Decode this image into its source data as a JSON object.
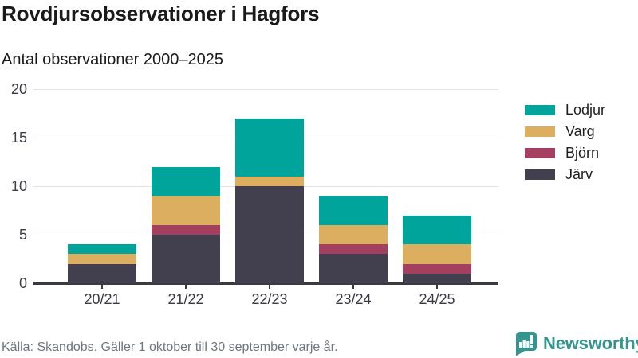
{
  "header": {
    "title": "Rovdjursobservationer i Hagfors",
    "subtitle": "Antal observationer 2000–2025"
  },
  "chart_data": {
    "type": "bar",
    "stacked": true,
    "title": "Rovdjursobservationer i Hagfors",
    "subtitle": "Antal observationer 2000–2025",
    "categories": [
      "20/21",
      "21/22",
      "22/23",
      "23/24",
      "24/25"
    ],
    "series": [
      {
        "name": "Järv",
        "color": "#423f4e",
        "values": [
          2,
          5,
          10,
          3,
          1
        ]
      },
      {
        "name": "Björn",
        "color": "#a43f60",
        "values": [
          0,
          1,
          0,
          1,
          1
        ]
      },
      {
        "name": "Varg",
        "color": "#dcae5f",
        "values": [
          1,
          3,
          1,
          2,
          2
        ]
      },
      {
        "name": "Lodjur",
        "color": "#00a49a",
        "values": [
          1,
          3,
          6,
          3,
          3
        ]
      }
    ],
    "totals": [
      4,
      12,
      17,
      9,
      7
    ],
    "ylim": [
      0,
      20
    ],
    "yticks": [
      0,
      5,
      10,
      15,
      20
    ],
    "xlabel": "",
    "ylabel": "",
    "grid": true,
    "legend_position": "right",
    "legend_order": [
      "Lodjur",
      "Varg",
      "Björn",
      "Järv"
    ]
  },
  "footer": {
    "source": "Källa: Skandobs. Gäller 1 oktober till 30 september varje år.",
    "brand": "Newsworthy"
  },
  "colors": {
    "accent_teal": "#00a49a",
    "gold": "#dcae5f",
    "maroon": "#a43f60",
    "dark_slate": "#423f4e",
    "gridline": "#e3e3e3",
    "axis": "#3a3a42",
    "text_dark": "#1a1a1a",
    "text_muted": "#6e7680",
    "brand_teal": "#35948e"
  }
}
